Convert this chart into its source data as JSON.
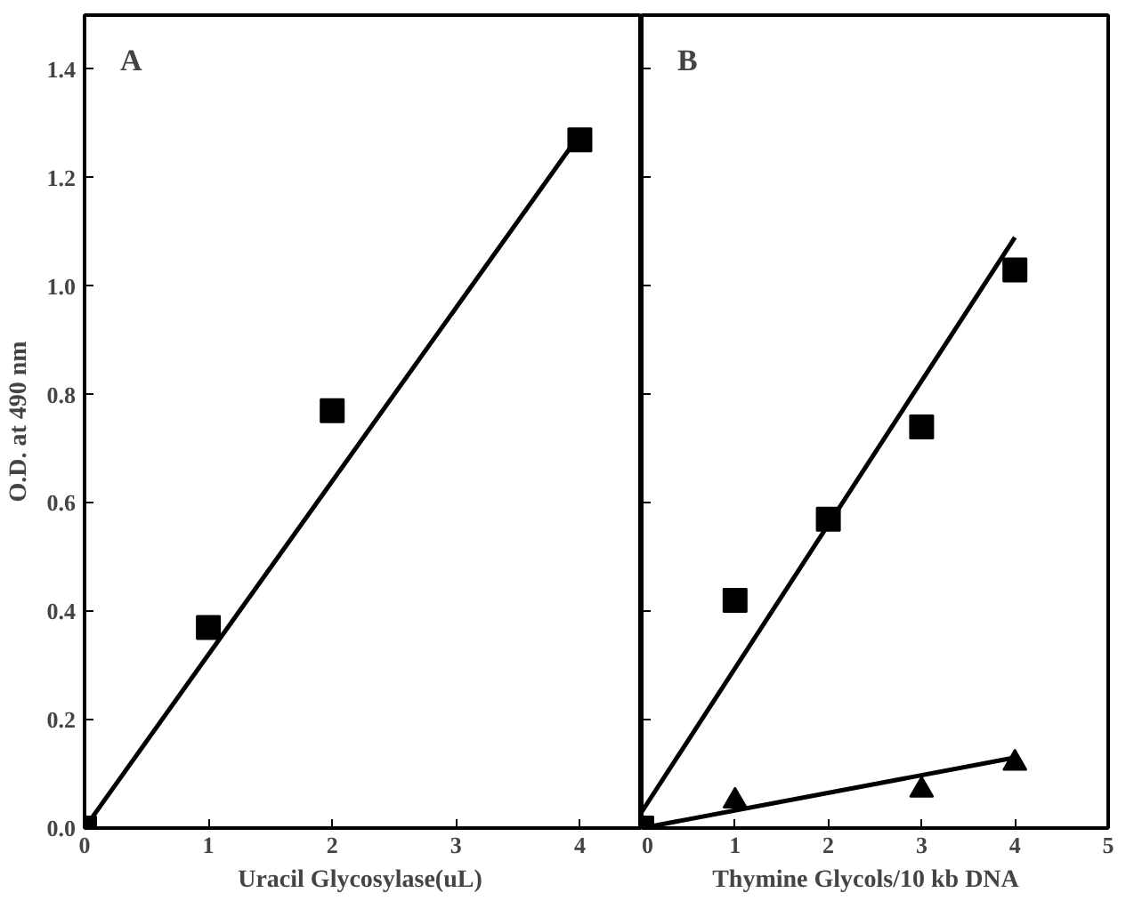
{
  "chart_data": [
    {
      "type": "scatter",
      "xlabel": "Uracil  Glycosylase(uL)",
      "ylabel": "O.D. at 490 nm",
      "annotations": [
        "A"
      ],
      "xlim": [
        0,
        4.5
      ],
      "ylim": [
        0,
        1.5
      ],
      "xticks": [
        0,
        1,
        2,
        3,
        4
      ],
      "yticks": [
        {
          "value": 0,
          "label": "0.0"
        },
        0.2,
        0.4,
        0.6,
        0.8,
        {
          "value": 1,
          "label": "1.0"
        },
        1.2,
        1.4
      ],
      "grid": false,
      "series": [
        {
          "marker": "square",
          "color": "#000000",
          "x": [
            0,
            1,
            2,
            4
          ],
          "values": [
            0,
            0.37,
            0.77,
            1.27
          ]
        },
        {
          "type": "line",
          "marker": "none",
          "color": "#000000",
          "x": [
            0,
            4
          ],
          "values": [
            0,
            1.28
          ]
        }
      ]
    },
    {
      "type": "scatter",
      "xlabel": "Thymine  Glycols/10  kb  DNA",
      "annotations": [
        "B"
      ],
      "xlim": [
        0,
        5
      ],
      "ylim": [
        0,
        1.5
      ],
      "xticks": [
        0,
        1,
        2,
        3,
        4,
        5
      ],
      "yticks": [
        0,
        0.2,
        0.4,
        0.6,
        0.8,
        1,
        1.2,
        1.4
      ],
      "tick_labels": "x",
      "grid": false,
      "series": [
        {
          "marker": "square",
          "color": "#000000",
          "x": [
            0,
            1,
            2,
            3,
            4
          ],
          "values": [
            0,
            0.42,
            0.57,
            0.74,
            1.03
          ]
        },
        {
          "marker": "triangle",
          "color": "#000000",
          "x": [
            1,
            3,
            4
          ],
          "values": [
            0.05,
            0.07,
            0.12
          ]
        },
        {
          "type": "line",
          "marker": "none",
          "color": "#000000",
          "x": [
            0,
            4
          ],
          "values": [
            0.03,
            1.09
          ]
        },
        {
          "type": "line",
          "marker": "none",
          "color": "#000000",
          "x": [
            0,
            4
          ],
          "values": [
            0,
            0.13
          ]
        }
      ]
    }
  ]
}
